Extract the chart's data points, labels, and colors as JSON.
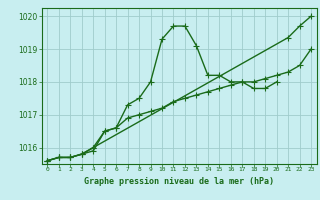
{
  "x": [
    0,
    1,
    2,
    3,
    4,
    5,
    6,
    7,
    8,
    9,
    10,
    11,
    12,
    13,
    14,
    15,
    16,
    17,
    18,
    19,
    20,
    21,
    22,
    23
  ],
  "line1": [
    1015.6,
    1015.7,
    1015.7,
    1015.8,
    1015.9,
    1016.5,
    1016.6,
    1017.3,
    1017.5,
    1018.0,
    1019.3,
    1019.7,
    1019.7,
    1019.1,
    1018.2,
    1018.2,
    1018.0,
    1018.0,
    1017.8,
    1017.8,
    1018.0,
    null,
    null,
    null
  ],
  "line2": [
    1015.6,
    1015.7,
    1015.7,
    1015.8,
    1016.0,
    1016.5,
    1016.6,
    1016.9,
    1017.0,
    1017.1,
    1017.2,
    1017.4,
    1017.5,
    1017.6,
    1017.7,
    1017.8,
    1017.9,
    1018.0,
    1018.0,
    1018.1,
    1018.2,
    1018.3,
    1018.5,
    1019.0
  ],
  "line3": [
    1015.6,
    1015.7,
    1015.7,
    1015.8,
    1016.0,
    null,
    null,
    null,
    null,
    null,
    null,
    null,
    null,
    null,
    null,
    null,
    null,
    null,
    null,
    null,
    null,
    1019.35,
    1019.7,
    1020.0
  ],
  "ylim": [
    1015.5,
    1020.25
  ],
  "yticks": [
    1016,
    1017,
    1018,
    1019,
    1020
  ],
  "xticks": [
    0,
    1,
    2,
    3,
    4,
    5,
    6,
    7,
    8,
    9,
    10,
    11,
    12,
    13,
    14,
    15,
    16,
    17,
    18,
    19,
    20,
    21,
    22,
    23
  ],
  "line_color": "#1a6b1a",
  "bg_color": "#c8eef0",
  "grid_color": "#a0cccc",
  "xlabel": "Graphe pression niveau de la mer (hPa)",
  "marker": "+",
  "markersize": 4,
  "linewidth": 1.0
}
